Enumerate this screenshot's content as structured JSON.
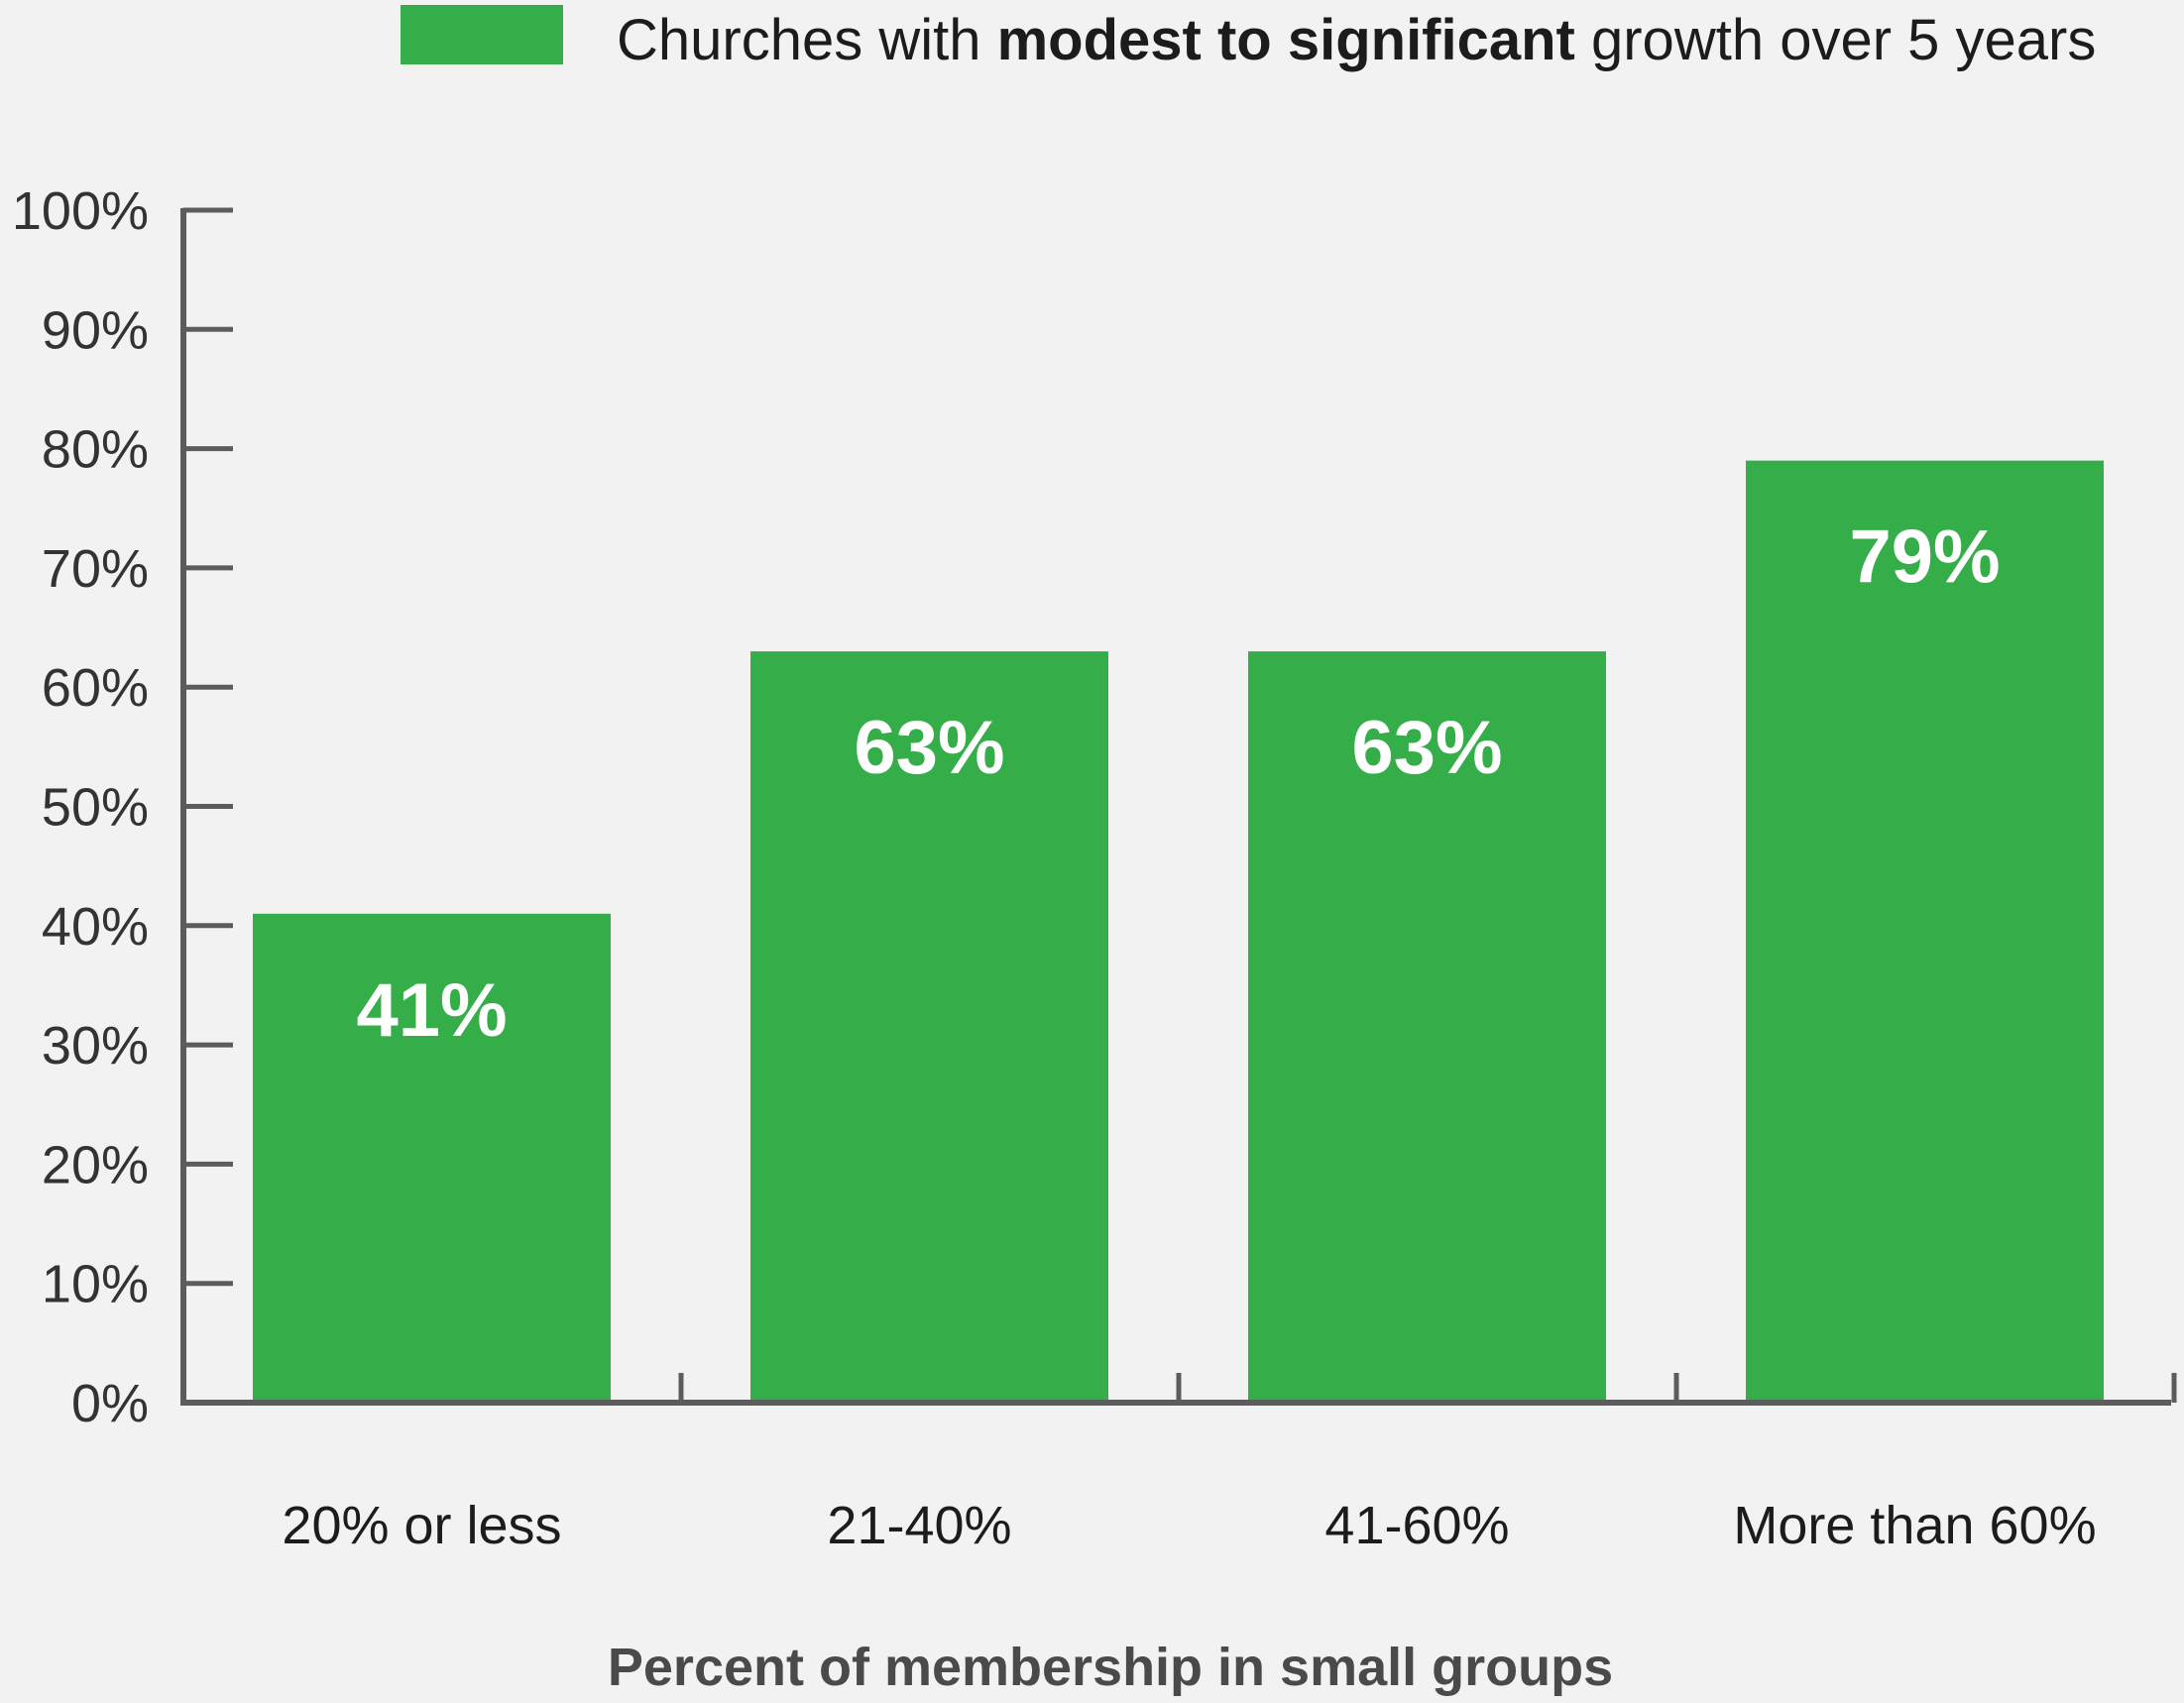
{
  "chart_data": {
    "type": "bar",
    "categories": [
      "20% or less",
      "21-40%",
      "41-60%",
      "More than 60%"
    ],
    "series": [
      {
        "name": "Churches with modest to significant growth over 5 years",
        "values": [
          41,
          63,
          63,
          79
        ]
      }
    ],
    "data_labels": [
      "41%",
      "63%",
      "63%",
      "79%"
    ],
    "legend": {
      "prefix": "Churches with ",
      "bold": "modest to significant",
      "suffix": " growth over 5 years",
      "placement": "top"
    },
    "xlabel": "Percent of membership in small groups",
    "ylabel": "",
    "ylim": [
      0,
      100
    ],
    "yticks": [
      "0%",
      "10%",
      "20%",
      "30%",
      "40%",
      "50%",
      "60%",
      "70%",
      "80%",
      "90%",
      "100%"
    ],
    "grid": false,
    "colors": {
      "bar": "#35ae4a",
      "axis": "#5c5c5c",
      "background": "#f2f2f2"
    }
  }
}
